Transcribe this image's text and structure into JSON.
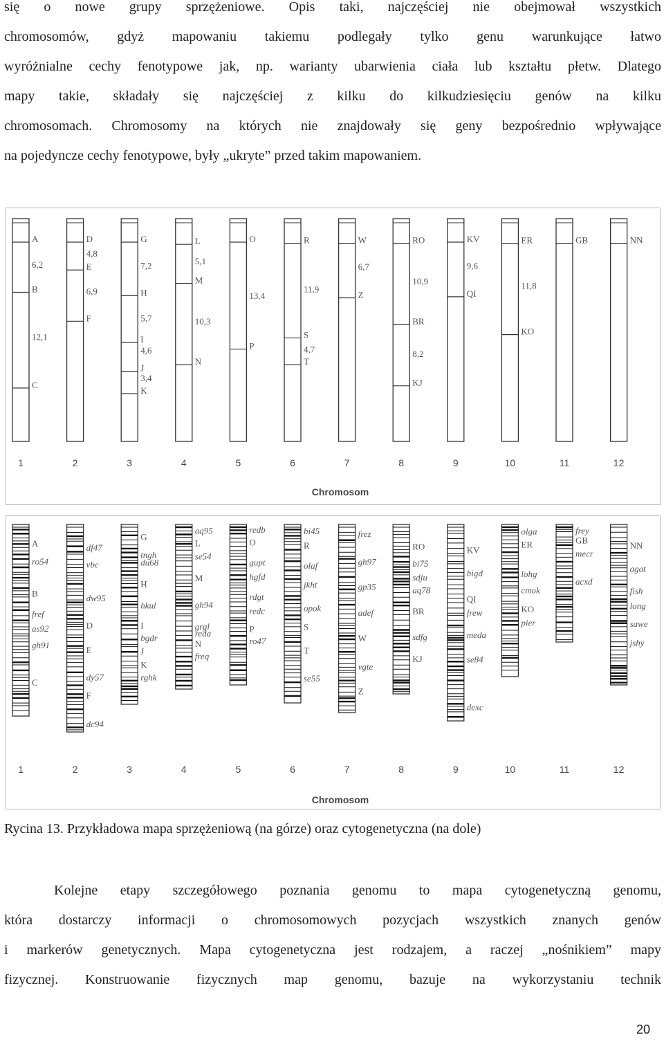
{
  "paragraph_top": [
    "się o nowe grupy sprzężeniowe. Opis taki, najczęściej nie obejmował wszystkich",
    "chromosomów, gdyż mapowaniu takiemu podlegały tylko genu warunkujące łatwo",
    "wyróżnialne cechy fenotypowe jak, np. warianty ubarwienia ciała lub kształtu płetw. Dlatego",
    "mapy takie, składały się najczęściej z kilku do kilkudziesięciu genów na kilku",
    "chromosomach. Chromosomy na których nie znajdowały się geny bezpośrednio wpływające",
    "na pojedyncze cechy fenotypowe, były „ukryte” przed takim mapowaniem."
  ],
  "linkage_map": {
    "chromosomes": [
      {
        "id": "1",
        "labels": [
          {
            "t": "A",
            "y": 0.09
          },
          {
            "t": "6,2",
            "y": 0.205
          },
          {
            "t": "B",
            "y": 0.315
          },
          {
            "t": "12,1",
            "y": 0.53
          },
          {
            "t": "C",
            "y": 0.745
          }
        ]
      },
      {
        "id": "2",
        "labels": [
          {
            "t": "D",
            "y": 0.09
          },
          {
            "t": "4,8",
            "y": 0.155
          },
          {
            "t": "E",
            "y": 0.215
          },
          {
            "t": "6,9",
            "y": 0.325
          },
          {
            "t": "F",
            "y": 0.445
          }
        ]
      },
      {
        "id": "3",
        "labels": [
          {
            "t": "G",
            "y": 0.09
          },
          {
            "t": "7,2",
            "y": 0.21
          },
          {
            "t": "H",
            "y": 0.33
          },
          {
            "t": "5,7",
            "y": 0.445
          },
          {
            "t": "I",
            "y": 0.54
          },
          {
            "t": "4,6",
            "y": 0.59
          },
          {
            "t": "J",
            "y": 0.67
          },
          {
            "t": "3,4",
            "y": 0.715
          },
          {
            "t": "K",
            "y": 0.77
          }
        ]
      },
      {
        "id": "4",
        "labels": [
          {
            "t": "L",
            "y": 0.1
          },
          {
            "t": "5,1",
            "y": 0.19
          },
          {
            "t": "M",
            "y": 0.275
          },
          {
            "t": "10,3",
            "y": 0.46
          },
          {
            "t": "N",
            "y": 0.64
          }
        ]
      },
      {
        "id": "5",
        "labels": [
          {
            "t": "O",
            "y": 0.09
          },
          {
            "t": "13,4",
            "y": 0.345
          },
          {
            "t": "P",
            "y": 0.57
          }
        ]
      },
      {
        "id": "6",
        "labels": [
          {
            "t": "R",
            "y": 0.095
          },
          {
            "t": "11,9",
            "y": 0.315
          },
          {
            "t": "S",
            "y": 0.52
          },
          {
            "t": "4,7",
            "y": 0.585
          },
          {
            "t": "T",
            "y": 0.64
          }
        ]
      },
      {
        "id": "7",
        "labels": [
          {
            "t": "W",
            "y": 0.095
          },
          {
            "t": "6,7",
            "y": 0.215
          },
          {
            "t": "Z",
            "y": 0.34
          }
        ]
      },
      {
        "id": "8",
        "labels": [
          {
            "t": "RO",
            "y": 0.095
          },
          {
            "t": "10,9",
            "y": 0.28
          },
          {
            "t": "BR",
            "y": 0.46
          },
          {
            "t": "8,2",
            "y": 0.605
          },
          {
            "t": "KJ",
            "y": 0.735
          }
        ]
      },
      {
        "id": "9",
        "labels": [
          {
            "t": "KV",
            "y": 0.09
          },
          {
            "t": "9,6",
            "y": 0.21
          },
          {
            "t": "QI",
            "y": 0.335
          }
        ]
      },
      {
        "id": "10",
        "labels": [
          {
            "t": "ER",
            "y": 0.095
          },
          {
            "t": "11,8",
            "y": 0.3
          },
          {
            "t": "KO",
            "y": 0.505
          }
        ]
      },
      {
        "id": "11",
        "labels": [
          {
            "t": "GB",
            "y": 0.095
          }
        ]
      },
      {
        "id": "12",
        "labels": [
          {
            "t": "NN",
            "y": 0.095
          }
        ]
      }
    ],
    "xlabel": "Chromosom"
  },
  "cyto_map": {
    "chromosomes": [
      {
        "id": "1",
        "labels": [
          {
            "t": "A",
            "y": 0.075
          },
          {
            "t": "ro54",
            "y": 0.15
          },
          {
            "t": "B",
            "y": 0.285
          },
          {
            "t": "fref",
            "y": 0.37
          },
          {
            "t": "as92",
            "y": 0.43
          },
          {
            "t": "gh91",
            "y": 0.5
          },
          {
            "t": "C",
            "y": 0.655
          }
        ]
      },
      {
        "id": "2",
        "labels": [
          {
            "t": "df47",
            "y": 0.085
          },
          {
            "t": "vbc",
            "y": 0.15
          },
          {
            "t": "dw95",
            "y": 0.28
          },
          {
            "t": "D",
            "y": 0.385
          },
          {
            "t": "E",
            "y": 0.48
          },
          {
            "t": "dy57",
            "y": 0.585
          },
          {
            "t": "F",
            "y": 0.655
          },
          {
            "t": "dc94",
            "y": 0.765
          }
        ]
      },
      {
        "id": "3",
        "labels": [
          {
            "t": "G",
            "y": 0.05
          },
          {
            "t": "tngh",
            "y": 0.13
          },
          {
            "t": "du68",
            "y": 0.165
          },
          {
            "t": "H",
            "y": 0.26
          },
          {
            "t": "hkul",
            "y": 0.355
          },
          {
            "t": "I",
            "y": 0.445
          },
          {
            "t": "bgdr",
            "y": 0.5
          },
          {
            "t": "J",
            "y": 0.56
          },
          {
            "t": "K",
            "y": 0.62
          },
          {
            "t": "rghk",
            "y": 0.675
          }
        ]
      },
      {
        "id": "4",
        "labels": [
          {
            "t": "aq95",
            "y": 0.025
          },
          {
            "t": "L",
            "y": 0.085
          },
          {
            "t": "se54",
            "y": 0.15
          },
          {
            "t": "M",
            "y": 0.255
          },
          {
            "t": "gh94",
            "y": 0.385
          },
          {
            "t": "grgl",
            "y": 0.49
          },
          {
            "t": "reda",
            "y": 0.525
          },
          {
            "t": "N",
            "y": 0.575
          },
          {
            "t": "freq",
            "y": 0.635
          }
        ]
      },
      {
        "id": "5",
        "labels": [
          {
            "t": "redb",
            "y": 0.02
          },
          {
            "t": "O",
            "y": 0.085
          },
          {
            "t": "gupt",
            "y": 0.185
          },
          {
            "t": "hgfd",
            "y": 0.255
          },
          {
            "t": "rdgt",
            "y": 0.355
          },
          {
            "t": "redc",
            "y": 0.425
          },
          {
            "t": "P",
            "y": 0.515
          },
          {
            "t": "ro47",
            "y": 0.575
          }
        ]
      },
      {
        "id": "6",
        "labels": [
          {
            "t": "bi45",
            "y": 0.025
          },
          {
            "t": "R",
            "y": 0.09
          },
          {
            "t": "olaf",
            "y": 0.18
          },
          {
            "t": "jkht",
            "y": 0.265
          },
          {
            "t": "opok",
            "y": 0.37
          },
          {
            "t": "S",
            "y": 0.455
          },
          {
            "t": "T",
            "y": 0.56
          },
          {
            "t": "se55",
            "y": 0.685
          }
        ]
      },
      {
        "id": "7",
        "labels": [
          {
            "t": "frez",
            "y": 0.035
          },
          {
            "t": "gh97",
            "y": 0.155
          },
          {
            "t": "gp35",
            "y": 0.26
          },
          {
            "t": "adef",
            "y": 0.37
          },
          {
            "t": "W",
            "y": 0.48
          },
          {
            "t": "vgte",
            "y": 0.6
          },
          {
            "t": "Z",
            "y": 0.705
          }
        ]
      },
      {
        "id": "8",
        "labels": [
          {
            "t": "RO",
            "y": 0.1
          },
          {
            "t": "bi75",
            "y": 0.18
          },
          {
            "t": "sdju",
            "y": 0.245
          },
          {
            "t": "aq78",
            "y": 0.305
          },
          {
            "t": "BR",
            "y": 0.405
          },
          {
            "t": "sdfg",
            "y": 0.525
          },
          {
            "t": "KJ",
            "y": 0.63
          }
        ]
      },
      {
        "id": "9",
        "labels": [
          {
            "t": "KV",
            "y": 0.1
          },
          {
            "t": "bigd",
            "y": 0.195
          },
          {
            "t": "QI",
            "y": 0.3
          },
          {
            "t": "frew",
            "y": 0.355
          },
          {
            "t": "meda",
            "y": 0.445
          },
          {
            "t": "se84",
            "y": 0.545
          },
          {
            "t": "dexc",
            "y": 0.74
          }
        ]
      },
      {
        "id": "10",
        "labels": [
          {
            "t": "olga",
            "y": 0.03
          },
          {
            "t": "ER",
            "y": 0.1
          },
          {
            "t": "lohg",
            "y": 0.255
          },
          {
            "t": "cmok",
            "y": 0.34
          },
          {
            "t": "KO",
            "y": 0.44
          },
          {
            "t": "pier",
            "y": 0.51
          }
        ]
      },
      {
        "id": "11",
        "labels": [
          {
            "t": "frey",
            "y": 0.035
          },
          {
            "t": "GB",
            "y": 0.1
          },
          {
            "t": "mecr",
            "y": 0.19
          },
          {
            "t": "acxd",
            "y": 0.38
          }
        ]
      },
      {
        "id": "12",
        "labels": [
          {
            "t": "NN",
            "y": 0.1
          },
          {
            "t": "agat",
            "y": 0.215
          },
          {
            "t": "fish",
            "y": 0.325
          },
          {
            "t": "long",
            "y": 0.4
          },
          {
            "t": "sawe",
            "y": 0.49
          },
          {
            "t": "jshy",
            "y": 0.585
          }
        ]
      }
    ],
    "xlabel": "Chromosom"
  },
  "caption": "Rycina 13. Przykładowa mapa sprzężeniową (na górze) oraz cytogenetyczna (na dole)",
  "paragraph_bottom": [
    "Kolejne etapy szczegółowego poznania genomu to mapa cytogenetyczną genomu,",
    "która dostarczy informacji o chromosomowych pozycjach wszystkich znanych genów",
    "i markerów genetycznych. Mapa cytogenetyczna jest rodzajem, a raczej „nośnikiem” mapy",
    "fizycznej. Konstruowanie fizycznych map genomu, bazuje na wykorzystaniu technik"
  ],
  "page_number": "20"
}
